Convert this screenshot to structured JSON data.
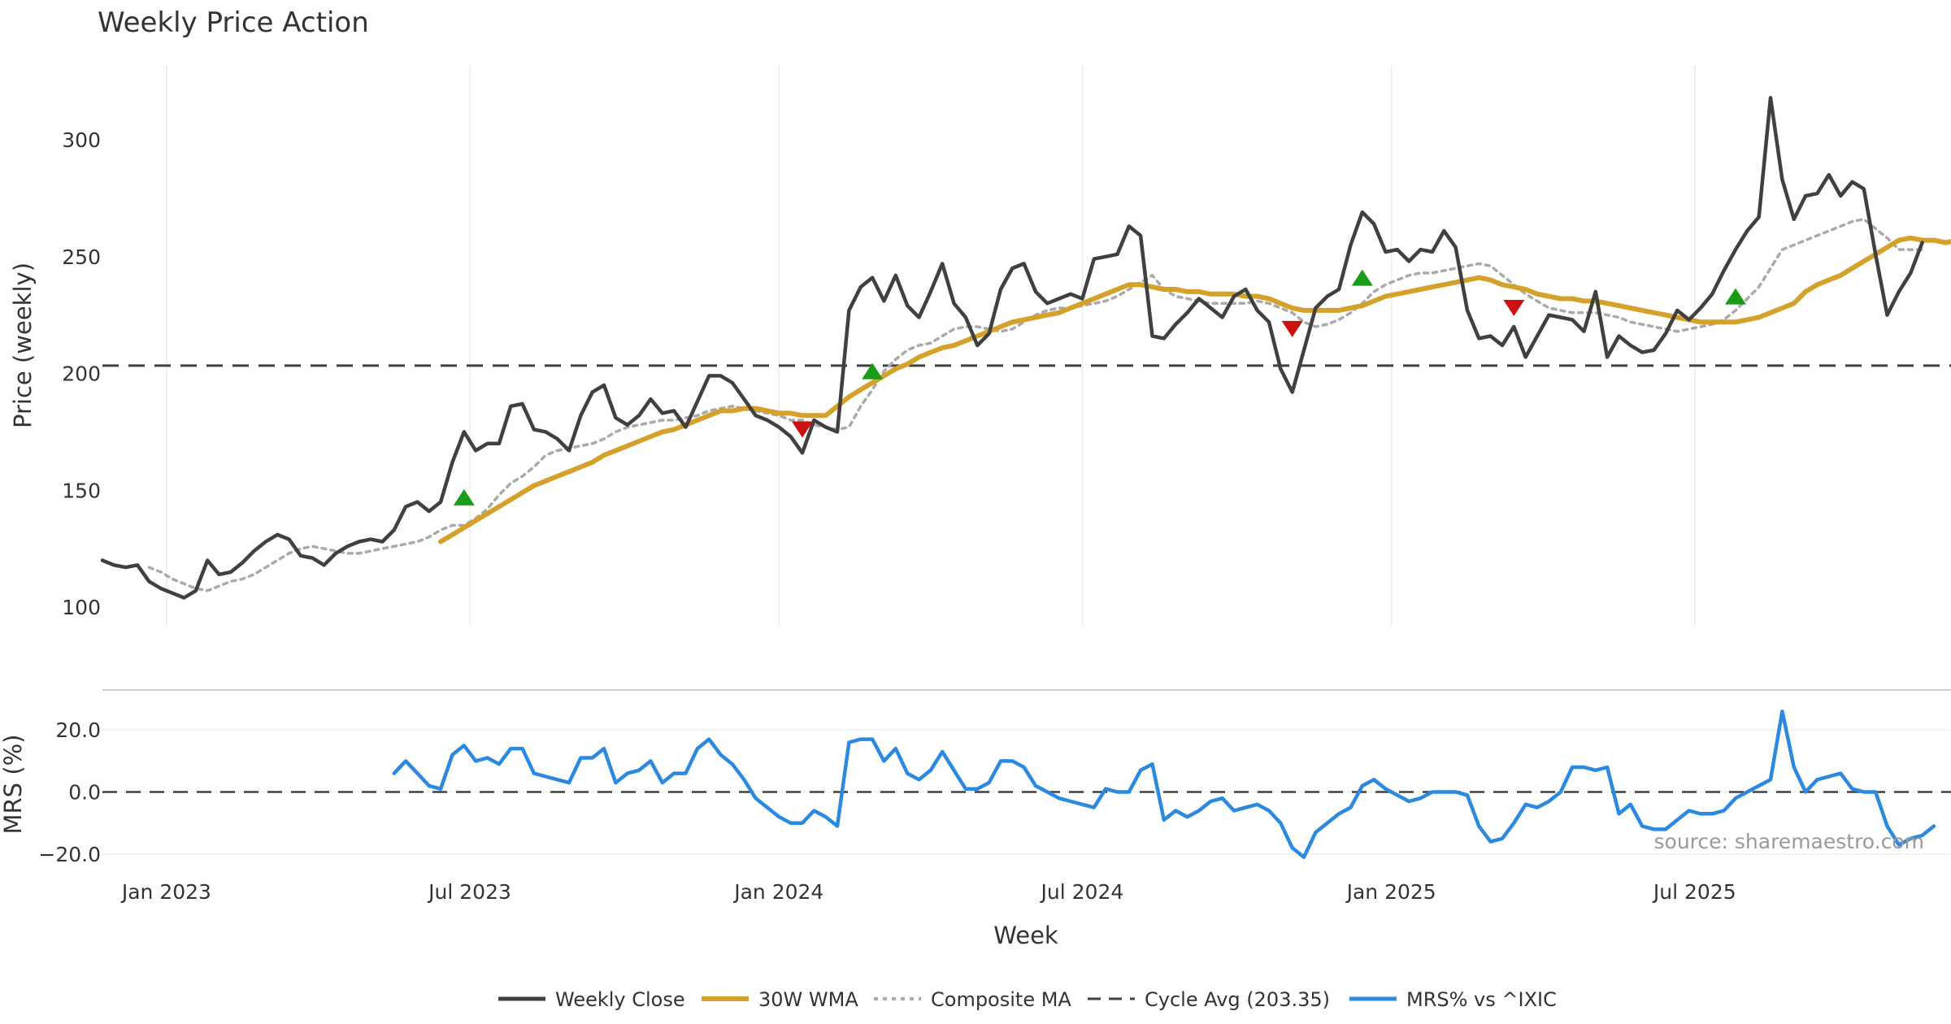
{
  "chart_data": {
    "type": "line",
    "title": "Weekly Price Action",
    "xlabel": "Week",
    "x_ticks": [
      "Jan 2023",
      "Jul 2023",
      "Jan 2024",
      "Jul 2024",
      "Jan 2025",
      "Jul 2025"
    ],
    "source": "source: sharemaestro.com",
    "price_panel": {
      "ylabel": "Price (weekly)",
      "ylim": [
        92,
        332
      ],
      "y_ticks": [
        "100",
        "150",
        "200",
        "250",
        "300"
      ],
      "cycle_avg": 203.35,
      "series": [
        {
          "name": "Weekly Close",
          "color": "#404040",
          "start_week": 0,
          "values": [
            120,
            118,
            117,
            118,
            111,
            108,
            106,
            104,
            107,
            120,
            114,
            115,
            119,
            124,
            128,
            131,
            129,
            122,
            121,
            118,
            123,
            126,
            128,
            129,
            128,
            133,
            143,
            145,
            141,
            145,
            162,
            175,
            167,
            170,
            170,
            186,
            187,
            176,
            175,
            172,
            167,
            182,
            192,
            195,
            181,
            178,
            182,
            189,
            183,
            184,
            177,
            188,
            199,
            199,
            196,
            189,
            182,
            180,
            177,
            173,
            166,
            180,
            177,
            175,
            227,
            237,
            241,
            231,
            242,
            229,
            224,
            235,
            247,
            230,
            224,
            212,
            217,
            236,
            245,
            247,
            235,
            230,
            232,
            234,
            232,
            249,
            250,
            251,
            263,
            259,
            216,
            215,
            221,
            226,
            232,
            228,
            224,
            233,
            236,
            227,
            222,
            202,
            192,
            210,
            228,
            233,
            236,
            255,
            269,
            264,
            252,
            253,
            248,
            253,
            252,
            261,
            254,
            227,
            215,
            216,
            212,
            220,
            207,
            216,
            225,
            224,
            223,
            218,
            235,
            207,
            216,
            212,
            209,
            210,
            217,
            227,
            223,
            228,
            234,
            244,
            253,
            261,
            267,
            318,
            283,
            266,
            276,
            277,
            285,
            276,
            282,
            279,
            251,
            225,
            235,
            243,
            256
          ]
        },
        {
          "name": "30W WMA",
          "color": "#d4a12a",
          "start_week": 29,
          "values": [
            128,
            131,
            134,
            137,
            140,
            143,
            146,
            149,
            152,
            154,
            156,
            158,
            160,
            162,
            165,
            167,
            169,
            171,
            173,
            175,
            176,
            178,
            180,
            182,
            184,
            184,
            185,
            185,
            184,
            183,
            183,
            182,
            182,
            182,
            186,
            190,
            193,
            196,
            199,
            202,
            204,
            207,
            209,
            211,
            212,
            214,
            216,
            218,
            220,
            222,
            223,
            224,
            225,
            226,
            228,
            230,
            232,
            234,
            236,
            238,
            238,
            237,
            236,
            236,
            235,
            235,
            234,
            234,
            234,
            233,
            233,
            232,
            230,
            228,
            227,
            227,
            227,
            227,
            228,
            229,
            231,
            233,
            234,
            235,
            236,
            237,
            238,
            239,
            240,
            241,
            240,
            238,
            237,
            236,
            234,
            233,
            232,
            232,
            231,
            231,
            230,
            229,
            228,
            227,
            226,
            225,
            224,
            223,
            222,
            222,
            222,
            222,
            223,
            224,
            226,
            228,
            230,
            235,
            238,
            240,
            242,
            245,
            248,
            251,
            254,
            257,
            258,
            257,
            257,
            256,
            257
          ]
        },
        {
          "name": "Composite MA",
          "color": "#aaaaaa",
          "start_week": 4,
          "values": [
            117,
            115,
            112,
            110,
            108,
            107,
            109,
            111,
            112,
            114,
            117,
            120,
            123,
            125,
            126,
            125,
            124,
            123,
            123,
            124,
            125,
            126,
            127,
            128,
            130,
            133,
            135,
            135,
            138,
            142,
            148,
            153,
            156,
            160,
            165,
            167,
            168,
            169,
            170,
            172,
            175,
            177,
            178,
            179,
            180,
            180,
            181,
            182,
            184,
            185,
            186,
            185,
            184,
            183,
            182,
            180,
            180,
            178,
            177,
            176,
            177,
            186,
            193,
            201,
            206,
            210,
            212,
            213,
            216,
            219,
            220,
            220,
            219,
            218,
            219,
            222,
            225,
            227,
            228,
            228,
            229,
            230,
            231,
            233,
            236,
            239,
            242,
            236,
            233,
            232,
            231,
            230,
            230,
            230,
            230,
            231,
            230,
            228,
            226,
            222,
            220,
            221,
            223,
            226,
            230,
            235,
            238,
            240,
            242,
            243,
            243,
            244,
            245,
            246,
            247,
            246,
            242,
            238,
            234,
            231,
            228,
            227,
            226,
            226,
            226,
            225,
            224,
            222,
            221,
            220,
            219,
            218,
            219,
            220,
            221,
            223,
            227,
            232,
            237,
            245,
            253,
            255,
            257,
            259,
            261,
            263,
            265,
            266,
            262,
            258,
            253,
            253,
            253
          ]
        }
      ],
      "markers": [
        {
          "type": "buy",
          "color": "#1a9c1a",
          "week": 31,
          "value": 147
        },
        {
          "type": "buy",
          "color": "#1a9c1a",
          "week": 66,
          "value": 201
        },
        {
          "type": "buy",
          "color": "#1a9c1a",
          "week": 108,
          "value": 241
        },
        {
          "type": "buy",
          "color": "#1a9c1a",
          "week": 140,
          "value": 233
        },
        {
          "type": "sell",
          "color": "#cc1111",
          "week": 60,
          "value": 176
        },
        {
          "type": "sell",
          "color": "#cc1111",
          "week": 102,
          "value": 219
        },
        {
          "type": "sell",
          "color": "#cc1111",
          "week": 121,
          "value": 228
        }
      ]
    },
    "mrs_panel": {
      "ylabel": "MRS (%)",
      "ylim": [
        -25,
        30
      ],
      "y_ticks": [
        "20.0",
        "0.0",
        "−20.0"
      ],
      "series": [
        {
          "name": "MRS% vs ^IXIC",
          "color": "#2b8ae0",
          "start_week": 25,
          "values": [
            6,
            10,
            6,
            2,
            1,
            12,
            15,
            10,
            11,
            9,
            14,
            14,
            6,
            5,
            4,
            3,
            11,
            11,
            14,
            3,
            6,
            7,
            10,
            3,
            6,
            6,
            14,
            17,
            12,
            9,
            4,
            -2,
            -5,
            -8,
            -10,
            -10,
            -6,
            -8,
            -11,
            16,
            17,
            17,
            10,
            14,
            6,
            4,
            7,
            13,
            7,
            1,
            1,
            3,
            10,
            10,
            8,
            2,
            0,
            -2,
            -3,
            -4,
            -5,
            1,
            0,
            0,
            7,
            9,
            -9,
            -6,
            -8,
            -6,
            -3,
            -2,
            -6,
            -5,
            -4,
            -6,
            -10,
            -18,
            -21,
            -13,
            -10,
            -7,
            -5,
            2,
            4,
            1,
            -1,
            -3,
            -2,
            0,
            0,
            0,
            -1,
            -11,
            -16,
            -15,
            -10,
            -4,
            -5,
            -3,
            0,
            8,
            8,
            7,
            8,
            -7,
            -4,
            -11,
            -12,
            -12,
            -9,
            -6,
            -7,
            -7,
            -6,
            -2,
            0,
            2,
            4,
            26,
            8,
            0,
            4,
            5,
            6,
            1,
            0,
            0,
            -11,
            -17,
            -15,
            -14,
            -11
          ]
        }
      ]
    },
    "legend": [
      {
        "label": "Weekly Close",
        "style": "solid",
        "color": "#404040"
      },
      {
        "label": "30W WMA",
        "style": "solid-thick",
        "color": "#d4a12a"
      },
      {
        "label": "Composite MA",
        "style": "dotted",
        "color": "#aaaaaa"
      },
      {
        "label": "Cycle Avg (203.35)",
        "style": "dashed",
        "color": "#404040"
      },
      {
        "label": "MRS% vs ^IXIC",
        "style": "solid",
        "color": "#2b8ae0"
      }
    ]
  }
}
